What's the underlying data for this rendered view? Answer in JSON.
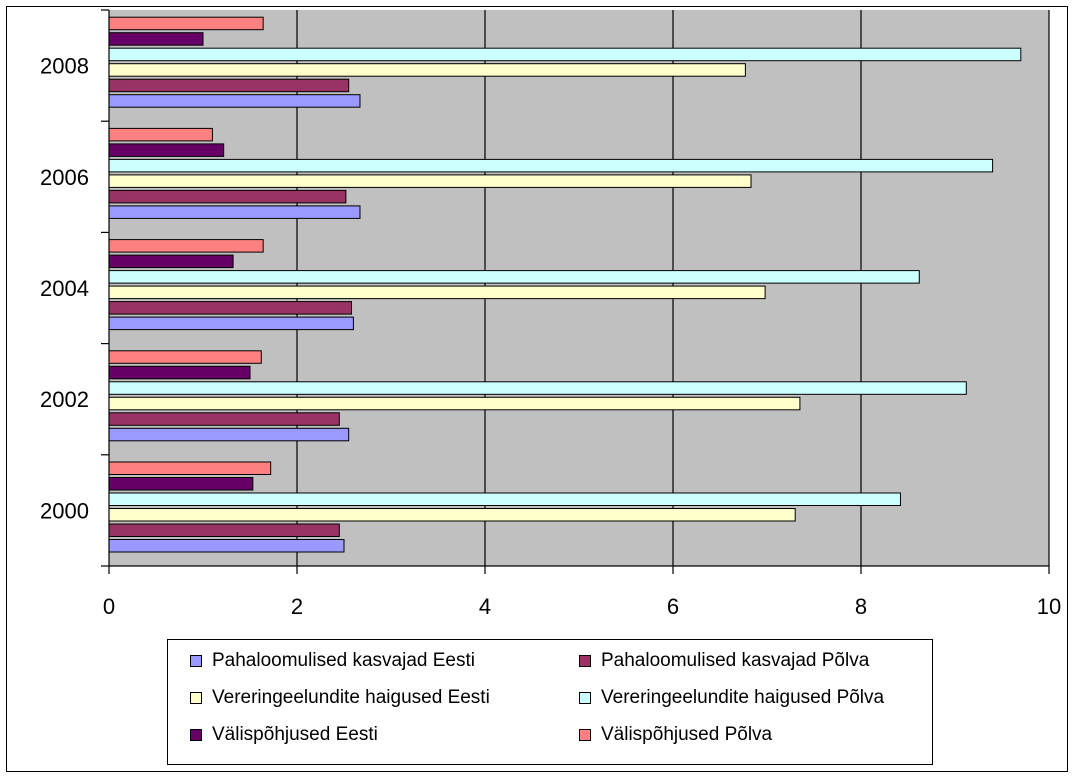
{
  "chart_data": {
    "type": "bar",
    "orientation": "horizontal",
    "title": "",
    "xlabel": "",
    "ylabel": "",
    "xlim": [
      0,
      10
    ],
    "x_ticks": [
      "0",
      "2",
      "4",
      "6",
      "8",
      "10"
    ],
    "categories": [
      "2000",
      "2002",
      "2004",
      "2006",
      "2008"
    ],
    "grid": true,
    "legend_position": "bottom",
    "series": [
      {
        "name": "Pahaloomulised kasvajad Eesti",
        "color": "#9999ff",
        "values": [
          2.5,
          2.55,
          2.6,
          2.67,
          2.67
        ]
      },
      {
        "name": "Pahaloomulised kasvajad Põlva",
        "color": "#993366",
        "values": [
          2.45,
          2.45,
          2.58,
          2.52,
          2.55
        ]
      },
      {
        "name": "Vereringeelundite haigused Eesti",
        "color": "#ffffcc",
        "values": [
          7.3,
          7.35,
          6.98,
          6.83,
          6.77
        ]
      },
      {
        "name": "Vereringeelundite haigused Põlva",
        "color": "#ccffff",
        "values": [
          8.42,
          9.12,
          8.62,
          9.4,
          9.7
        ]
      },
      {
        "name": "Välispõhjused Eesti",
        "color": "#660066",
        "values": [
          1.53,
          1.5,
          1.32,
          1.22,
          1.0
        ]
      },
      {
        "name": "Välispõhjused Põlva",
        "color": "#ff8080",
        "values": [
          1.72,
          1.62,
          1.64,
          1.1,
          1.64
        ]
      }
    ]
  }
}
